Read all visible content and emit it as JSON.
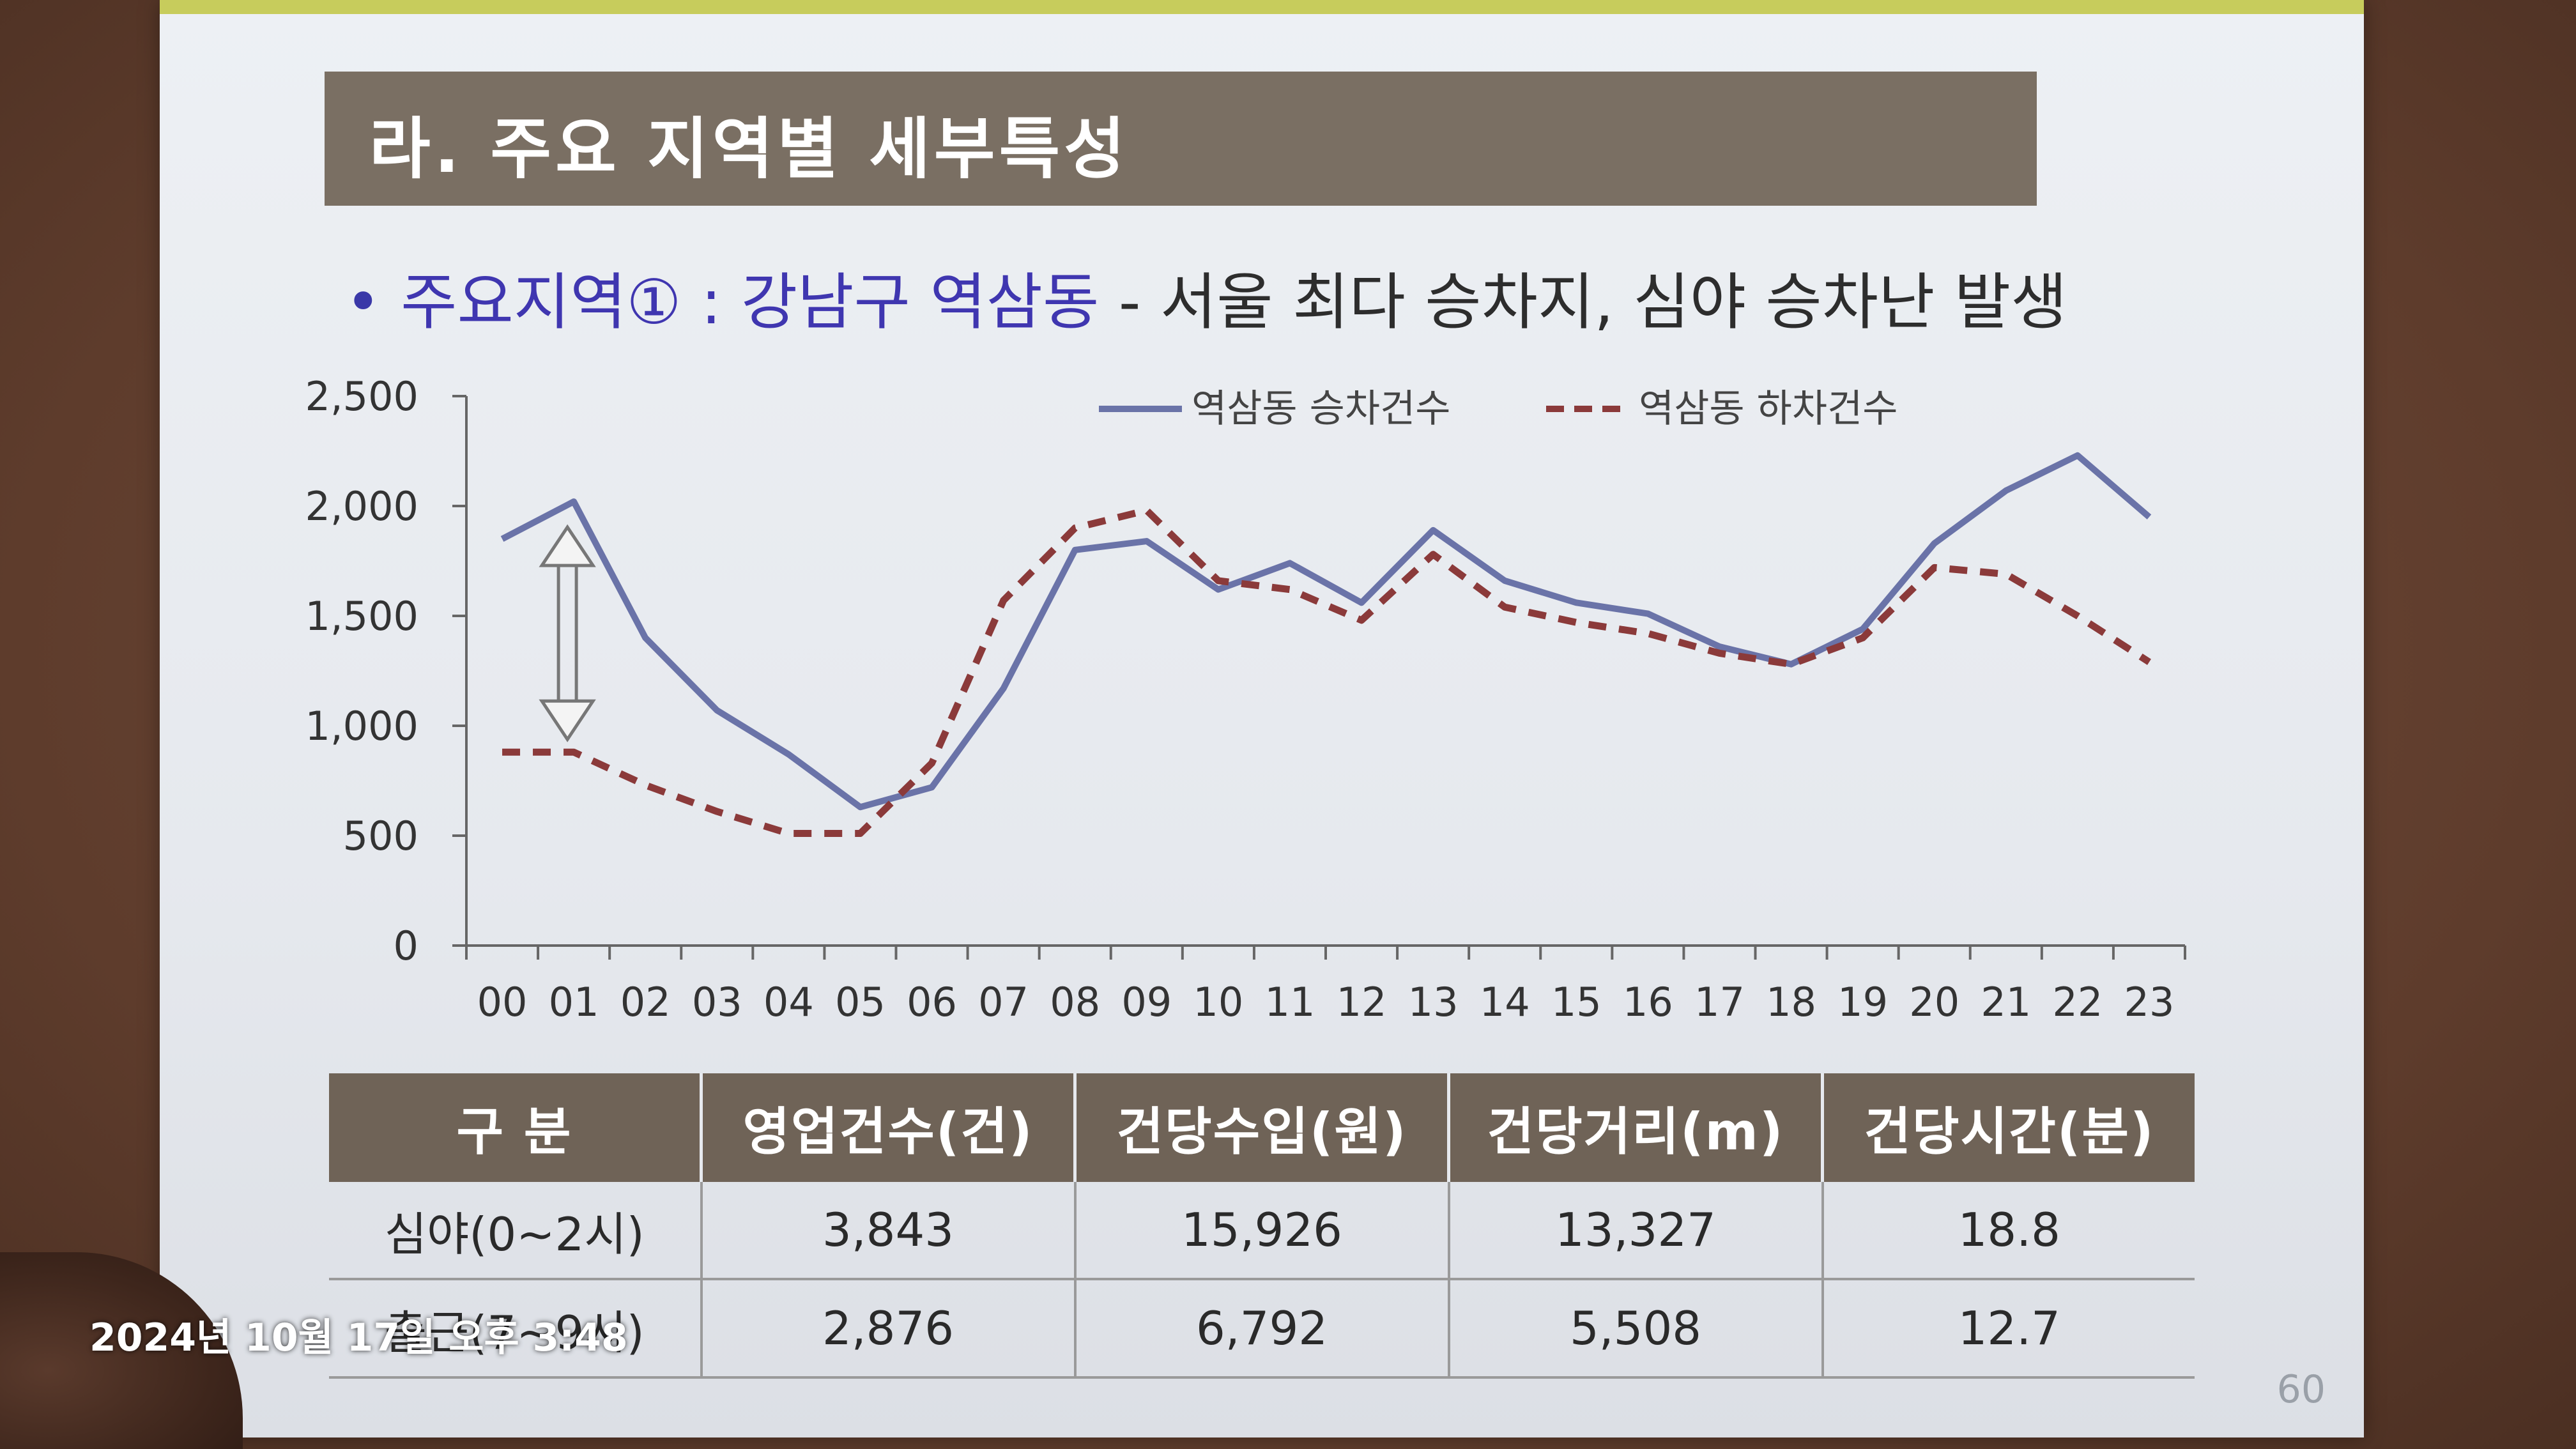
{
  "slide": {
    "section_title": "라. 주요 지역별 세부특성",
    "subtitle_bullet": "•",
    "subtitle_highlight": "주요지역① : 강남구 역삼동",
    "subtitle_rest": " - 서울 최다 승차지, 심야 승차난 발생",
    "page_number": "60"
  },
  "chart_data": {
    "type": "line",
    "categories": [
      "00",
      "01",
      "02",
      "03",
      "04",
      "05",
      "06",
      "07",
      "08",
      "09",
      "10",
      "11",
      "12",
      "13",
      "14",
      "15",
      "16",
      "17",
      "18",
      "19",
      "20",
      "21",
      "22",
      "23"
    ],
    "series": [
      {
        "name": "역삼동 승차건수",
        "style": "solid",
        "color": "#6a73a8",
        "values": [
          1850,
          2020,
          1400,
          1070,
          870,
          630,
          720,
          1170,
          1800,
          1840,
          1620,
          1740,
          1560,
          1890,
          1660,
          1560,
          1510,
          1360,
          1280,
          1440,
          1830,
          2070,
          2230,
          1950
        ]
      },
      {
        "name": "역삼동 하차건수",
        "style": "dashed",
        "color": "#8b3a3a",
        "values": [
          880,
          880,
          730,
          610,
          510,
          510,
          830,
          1570,
          1900,
          1980,
          1660,
          1620,
          1480,
          1780,
          1540,
          1470,
          1420,
          1330,
          1280,
          1400,
          1720,
          1690,
          1500,
          1290
        ]
      }
    ],
    "ylim": [
      0,
      2500
    ],
    "yticks": [
      "0",
      "500",
      "1,000",
      "1,500",
      "2,000",
      "2,500"
    ],
    "ytick_values": [
      0,
      500,
      1000,
      1500,
      2000,
      2500
    ],
    "legend_position": "top-center",
    "grid": false,
    "annotation": "double-headed arrow at 01 between series"
  },
  "table": {
    "headers": [
      "구 분",
      "영업건수(건)",
      "건당수입(원)",
      "건당거리(m)",
      "건당시간(분)"
    ],
    "rows": [
      [
        "심야(0~2시)",
        "3,843",
        "15,926",
        "13,327",
        "18.8"
      ],
      [
        "출근(7~9시)",
        "2,876",
        "6,792",
        "5,508",
        "12.7"
      ]
    ]
  },
  "overlay": {
    "timestamp": "2024년 10월 17일 오후 3:48"
  }
}
